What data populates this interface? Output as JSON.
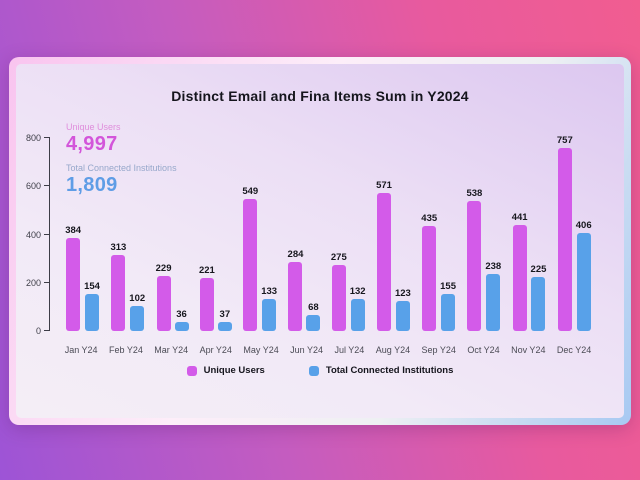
{
  "chart_data": {
    "type": "bar",
    "title": "Distinct Email and Fina Items Sum in Y2024",
    "categories": [
      "Jan Y24",
      "Feb Y24",
      "Mar Y24",
      "Apr Y24",
      "May Y24",
      "Jun Y24",
      "Jul Y24",
      "Aug Y24",
      "Sep Y24",
      "Oct Y24",
      "Nov Y24",
      "Dec Y24"
    ],
    "series": [
      {
        "name": "Unique Users",
        "color": "#d35be9",
        "values": [
          384,
          313,
          229,
          221,
          549,
          284,
          275,
          571,
          435,
          538,
          441,
          757
        ]
      },
      {
        "name": "Total Connected Institutions",
        "color": "#58a1e9",
        "values": [
          154,
          102,
          36,
          37,
          133,
          68,
          132,
          123,
          155,
          238,
          225,
          406
        ]
      }
    ],
    "ylim": [
      0,
      800
    ],
    "yticks": [
      0,
      200,
      400,
      600,
      800
    ],
    "grid": false,
    "legend_position": "bottom"
  },
  "summary": {
    "unique_users_label": "Unique Users",
    "unique_users_value": "4,997",
    "institutions_label": "Total Connected Institutions",
    "institutions_value": "1,809"
  },
  "colors": {
    "unique_users_accent": "#d355da",
    "institutions_accent": "#5f9de6",
    "card_background": "#f0e7f6",
    "title_text": "#15151d"
  }
}
